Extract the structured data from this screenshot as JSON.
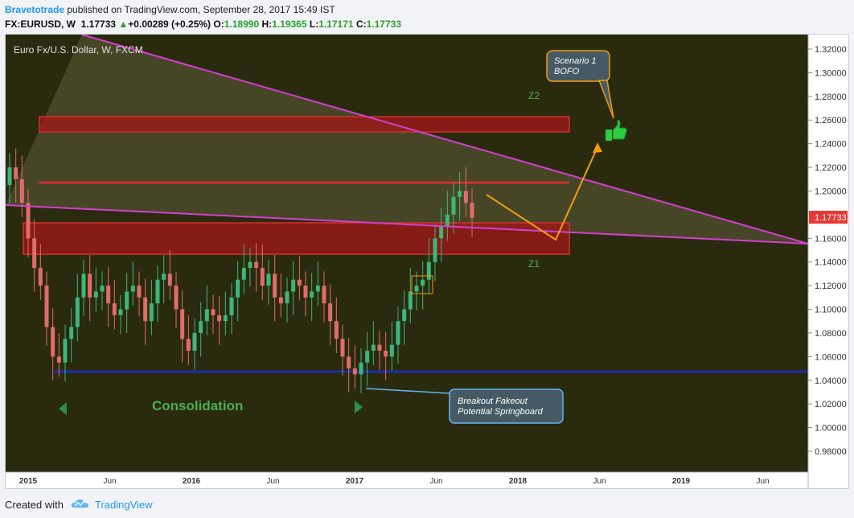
{
  "header": {
    "author": "Bravetotrade",
    "published_text": " published on TradingView.com, September 28, 2017 15:49 IST",
    "symbol": "FX:EURUSD, W",
    "last": "1.17733",
    "change": "+0.00289 (+0.25%)",
    "o_label": "O:",
    "o_val": "1.18990",
    "h_label": "H:",
    "h_val": "1.19365",
    "l_label": "L:",
    "l_val": "1.17171",
    "c_label": "C:",
    "c_val": "1.17733"
  },
  "footer": {
    "created_with": "Created with",
    "brand": "TradingView"
  },
  "colors": {
    "background": "#2a2a0e",
    "up_candle": "#3ab77a",
    "down_candle": "#e26b6b",
    "trendline": "#d43fd0",
    "support_line": "#1d2ea8",
    "zone_fill": "#a31717",
    "arrow": "#f39c12",
    "label_green": "#4caf50",
    "price_tag": "#e53935"
  },
  "chart_data": {
    "type": "candlestick",
    "title": "Euro Fx/U.S. Dollar, W, FXCM",
    "y_ticks": [
      1.32,
      1.3,
      1.28,
      1.26,
      1.24,
      1.22,
      1.2,
      1.16,
      1.14,
      1.12,
      1.1,
      1.08,
      1.06,
      1.04,
      1.02,
      1.0,
      0.98
    ],
    "ylim": [
      0.97,
      1.33
    ],
    "x_labels": [
      "2015",
      "Jun",
      "2016",
      "Jun",
      "2017",
      "Jun",
      "2018",
      "Jun",
      "2019",
      "Jun"
    ],
    "last_price_tag": "1.17733",
    "closes": [
      1.22,
      1.21,
      1.19,
      1.16,
      1.135,
      1.12,
      1.085,
      1.06,
      1.055,
      1.075,
      1.085,
      1.11,
      1.13,
      1.11,
      1.115,
      1.12,
      1.105,
      1.095,
      1.1,
      1.115,
      1.12,
      1.11,
      1.09,
      1.105,
      1.125,
      1.13,
      1.12,
      1.1,
      1.075,
      1.065,
      1.08,
      1.09,
      1.1,
      1.095,
      1.09,
      1.095,
      1.11,
      1.125,
      1.135,
      1.14,
      1.135,
      1.12,
      1.13,
      1.11,
      1.105,
      1.115,
      1.125,
      1.12,
      1.11,
      1.115,
      1.12,
      1.105,
      1.09,
      1.075,
      1.06,
      1.05,
      1.045,
      1.055,
      1.065,
      1.07,
      1.065,
      1.06,
      1.07,
      1.09,
      1.1,
      1.115,
      1.12,
      1.125,
      1.14,
      1.16,
      1.17,
      1.18,
      1.195,
      1.2,
      1.19,
      1.1773
    ],
    "annotations": [
      {
        "text": "Z2"
      },
      {
        "text": "Z1"
      },
      {
        "text": "Consolidation"
      },
      {
        "text": "Scenario 1"
      },
      {
        "text": "BOFO"
      },
      {
        "text": "Breakout Fakeout"
      },
      {
        "text": "Potential Springboard"
      }
    ]
  }
}
